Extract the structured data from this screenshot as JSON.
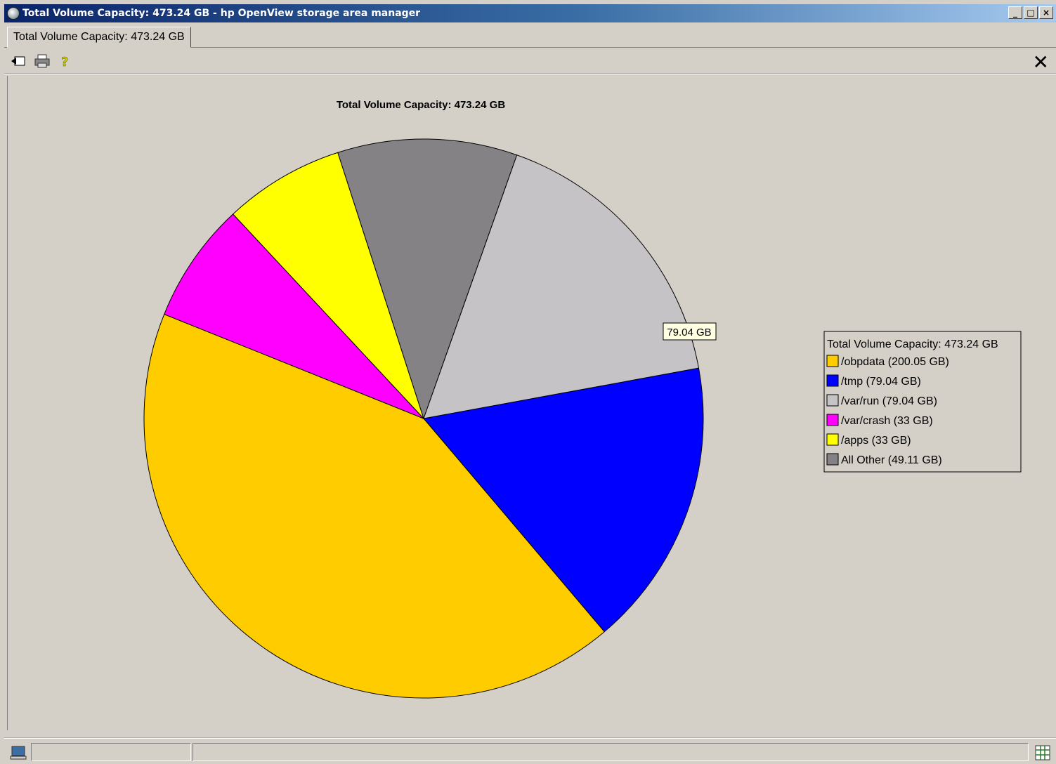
{
  "window": {
    "title": "Total Volume Capacity: 473.24 GB - hp OpenView storage area manager",
    "minimize_glyph": "_",
    "maximize_glyph": "□",
    "close_glyph": "×"
  },
  "tab": {
    "label": "Total Volume Capacity: 473.24 GB"
  },
  "toolbar": {
    "icons": [
      "back-icon",
      "print-icon",
      "help-icon"
    ],
    "close_glyph": "✕"
  },
  "chart_data": {
    "type": "pie",
    "title": "Total Volume Capacity: 473.24 GB",
    "slices": [
      {
        "label": "/obpdata",
        "value": 200.05,
        "color": "#ffcc00"
      },
      {
        "label": "/tmp",
        "value": 79.04,
        "color": "#0000ff"
      },
      {
        "label": "/var/run",
        "value": 79.04,
        "color": "#c6c3c6"
      },
      {
        "label": "/var/crash",
        "value": 33,
        "color": "#ff00ff"
      },
      {
        "label": "/apps",
        "value": 33,
        "color": "#ffff00"
      },
      {
        "label": "All Other",
        "value": 49.11,
        "color": "#848284"
      }
    ],
    "legend": {
      "title": "Total Volume Capacity: 473.24 GB",
      "entries": [
        "/obpdata (200.05 GB)",
        "/tmp (79.04 GB)",
        "/var/run (79.04 GB)",
        "/var/crash (33 GB)",
        "/apps (33 GB)",
        "All Other (49.11 GB)"
      ],
      "placement": "right"
    },
    "tooltip": "79.04 GB"
  },
  "statusbar": {
    "icons": [
      "computer-icon",
      "grid-icon"
    ]
  }
}
